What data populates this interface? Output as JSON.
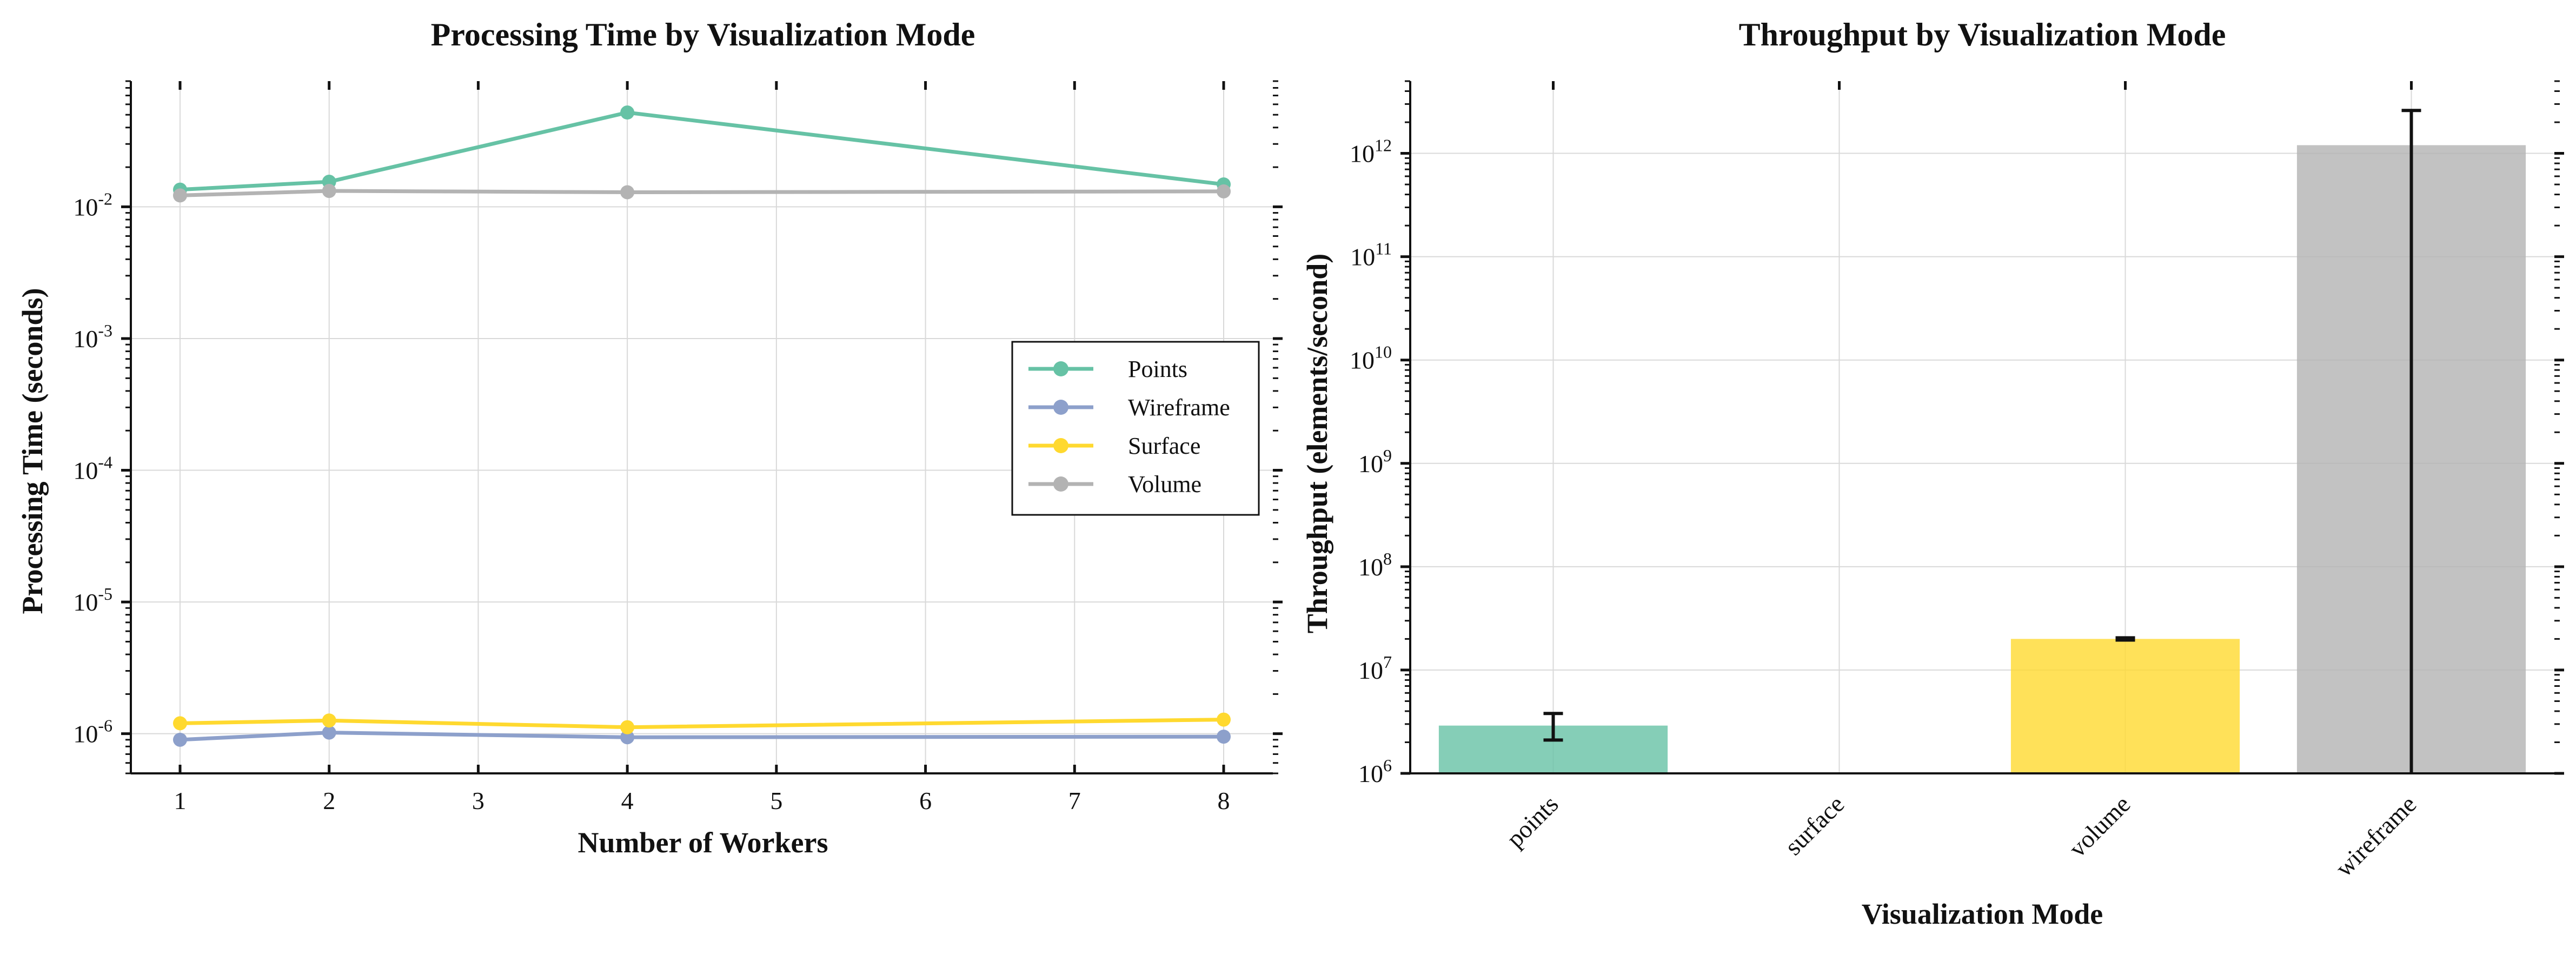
{
  "chart_data": [
    {
      "type": "line",
      "title": "Processing Time by Visualization Mode",
      "xlabel": "Number of Workers",
      "ylabel": "Processing Time (seconds)",
      "yscale": "log",
      "x_ticks": [
        1,
        2,
        3,
        4,
        5,
        6,
        7,
        8
      ],
      "x_tick_labels": [
        "1",
        "2",
        "3",
        "4",
        "5",
        "6",
        "7",
        "8"
      ],
      "xlim": [
        0.67,
        8.33
      ],
      "y_ticks": [
        "10^-6",
        "10^-5",
        "10^-4",
        "10^-3",
        "10^-2"
      ],
      "ylim": [
        5e-07,
        0.09
      ],
      "grid": true,
      "legend_position": "center-right",
      "x": [
        1,
        2,
        4,
        8
      ],
      "series": [
        {
          "name": "Points",
          "color": "#66c2a5",
          "values": [
            0.0135,
            0.0155,
            0.052,
            0.0148
          ]
        },
        {
          "name": "Wireframe",
          "color": "#8da0cb",
          "values": [
            9e-07,
            1.02e-06,
            9.4e-07,
            9.5e-07
          ]
        },
        {
          "name": "Surface",
          "color": "#ffd92f",
          "values": [
            1.2e-06,
            1.26e-06,
            1.12e-06,
            1.28e-06
          ]
        },
        {
          "name": "Volume",
          "color": "#b3b3b3",
          "values": [
            0.0122,
            0.0132,
            0.0129,
            0.0131
          ]
        }
      ]
    },
    {
      "type": "bar",
      "title": "Throughput by Visualization Mode",
      "xlabel": "Visualization Mode",
      "ylabel": "Throughput (elements/second)",
      "yscale": "log",
      "categories": [
        "points",
        "surface",
        "volume",
        "wireframe"
      ],
      "values": [
        2900000.0,
        null,
        20000000.0,
        1200000000000.0
      ],
      "error_bars": [
        [
          2100000.0,
          3800000.0
        ],
        null,
        [
          19500000.0,
          20500000.0
        ],
        [
          1000000.0,
          2600000000000.0
        ]
      ],
      "colors": [
        "#66c2a5",
        "#8da0cb",
        "#ffd92f",
        "#b3b3b3"
      ],
      "y_ticks": [
        "10^6",
        "10^7",
        "10^8",
        "10^9",
        "10^10",
        "10^11",
        "10^12"
      ],
      "ylim": [
        1000000.0,
        5000000000000.0
      ],
      "grid": true
    }
  ]
}
